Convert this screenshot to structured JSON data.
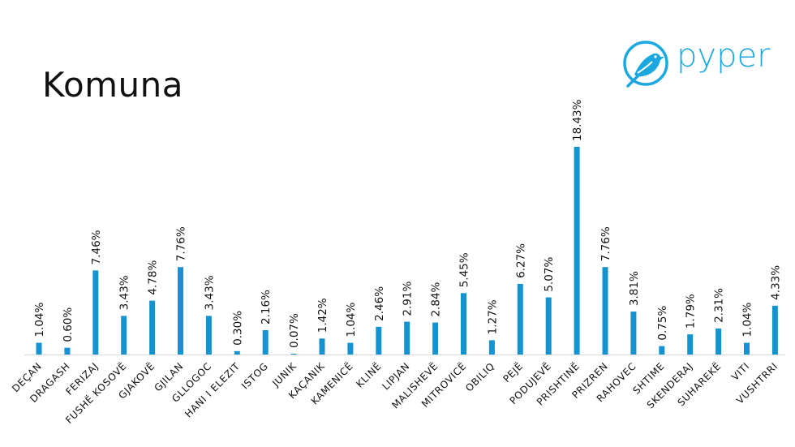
{
  "title": "Komuna",
  "logo": {
    "text": "pyper",
    "icon": "bird-icon",
    "color": "#1BA8E0"
  },
  "chart_data": {
    "type": "bar",
    "title": "Komuna",
    "xlabel": "",
    "ylabel": "",
    "ylim": [
      0,
      18.43
    ],
    "grid": false,
    "legend": "none",
    "bar_color": "#1593D0",
    "categories": [
      "DEÇAN",
      "DRAGASH",
      "FERIZAJ",
      "FUSHË KOSOVË",
      "GJAKOVË",
      "GJILAN",
      "GLLOGOC",
      "HANI I ELEZIT",
      "ISTOG",
      "JUNIK",
      "KAÇANIK",
      "KAMENICË",
      "KLINË",
      "LIPJAN",
      "MALISHEVË",
      "MITROVICË",
      "OBILIQ",
      "PEJË",
      "PODUJEVË",
      "PRISHTINË",
      "PRIZREN",
      "RAHOVEC",
      "SHTIME",
      "SKENDERAJ",
      "SUHAREKË",
      "VITI",
      "VUSHTRRI"
    ],
    "values": [
      1.04,
      0.6,
      7.46,
      3.43,
      4.78,
      7.76,
      3.43,
      0.3,
      2.16,
      0.07,
      1.42,
      1.04,
      2.46,
      2.91,
      2.84,
      5.45,
      1.27,
      6.27,
      5.07,
      18.43,
      7.76,
      3.81,
      0.75,
      1.79,
      2.31,
      1.04,
      4.33
    ],
    "labels": [
      "1.04%",
      "0.60%",
      "7.46%",
      "3.43%",
      "4.78%",
      "7.76%",
      "3.43%",
      "0.30%",
      "2.16%",
      "0.07%",
      "1.42%",
      "1.04%",
      "2.46%",
      "2.91%",
      "2.84%",
      "5.45%",
      "1.27%",
      "6.27%",
      "5.07%",
      "18.43%",
      "7.76%",
      "3.81%",
      "0.75%",
      "1.79%",
      "2.31%",
      "1.04%",
      "4.33%"
    ]
  }
}
